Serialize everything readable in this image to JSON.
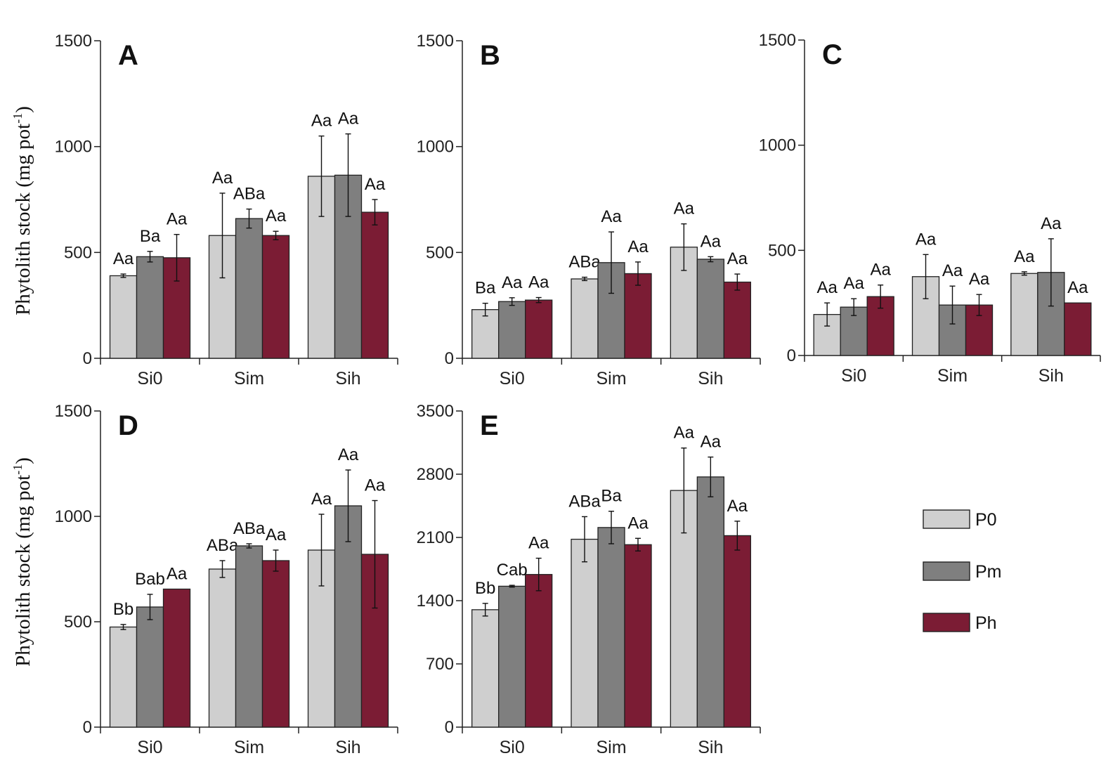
{
  "y_axis_label": {
    "main": "Phytolith stock (mg pot",
    "sup": "-1",
    "close": ")"
  },
  "legend": [
    {
      "label": "P0",
      "color": "#cfcfcf"
    },
    {
      "label": "Pm",
      "color": "#7f7f7f"
    },
    {
      "label": "Ph",
      "color": "#7b1c34"
    }
  ],
  "chart_data": [
    {
      "type": "bar",
      "panel": "A",
      "categories": [
        "Si0",
        "Sim",
        "Sih"
      ],
      "ylim": [
        0,
        1500
      ],
      "yticks": [
        0,
        500,
        1000,
        1500
      ],
      "series": [
        {
          "name": "P0",
          "values": [
            390,
            580,
            860
          ],
          "errors": [
            8,
            200,
            190
          ],
          "labels": [
            "Aa",
            "Aa",
            "Aa"
          ]
        },
        {
          "name": "Pm",
          "values": [
            480,
            660,
            865
          ],
          "errors": [
            25,
            45,
            195
          ],
          "labels": [
            "Ba",
            "ABa",
            "Aa"
          ]
        },
        {
          "name": "Ph",
          "values": [
            475,
            580,
            690
          ],
          "errors": [
            110,
            20,
            60
          ],
          "labels": [
            "Aa",
            "Aa",
            "Aa"
          ]
        }
      ]
    },
    {
      "type": "bar",
      "panel": "B",
      "categories": [
        "Si0",
        "Sim",
        "Sih"
      ],
      "ylim": [
        0,
        1500
      ],
      "yticks": [
        0,
        500,
        1000,
        1500
      ],
      "series": [
        {
          "name": "P0",
          "values": [
            230,
            375,
            525
          ],
          "errors": [
            30,
            8,
            110
          ],
          "labels": [
            "Ba",
            "ABa",
            "Aa"
          ]
        },
        {
          "name": "Pm",
          "values": [
            268,
            452,
            468
          ],
          "errors": [
            18,
            145,
            12
          ],
          "labels": [
            "Aa",
            "Aa",
            "Aa"
          ]
        },
        {
          "name": "Ph",
          "values": [
            275,
            400,
            360
          ],
          "errors": [
            12,
            55,
            38
          ],
          "labels": [
            "Aa",
            "Aa",
            "Aa"
          ]
        }
      ]
    },
    {
      "type": "bar",
      "panel": "C",
      "categories": [
        "Si0",
        "Sim",
        "Sih"
      ],
      "ylim": [
        0,
        1500
      ],
      "yticks": [
        0,
        500,
        1000,
        1500
      ],
      "series": [
        {
          "name": "P0",
          "values": [
            195,
            375,
            390
          ],
          "errors": [
            55,
            105,
            8
          ],
          "labels": [
            "Aa",
            "Aa",
            "Aa"
          ]
        },
        {
          "name": "Pm",
          "values": [
            230,
            240,
            395
          ],
          "errors": [
            40,
            90,
            160
          ],
          "labels": [
            "Aa",
            "Aa",
            "Aa"
          ]
        },
        {
          "name": "Ph",
          "values": [
            280,
            240,
            250
          ],
          "errors": [
            55,
            50,
            0
          ],
          "labels": [
            "Aa",
            "Aa",
            "Aa"
          ]
        }
      ]
    },
    {
      "type": "bar",
      "panel": "D",
      "categories": [
        "Si0",
        "Sim",
        "Sih"
      ],
      "ylim": [
        0,
        1500
      ],
      "yticks": [
        0,
        500,
        1000,
        1500
      ],
      "series": [
        {
          "name": "P0",
          "values": [
            475,
            750,
            840
          ],
          "errors": [
            12,
            40,
            170
          ],
          "labels": [
            "Bb",
            "ABa",
            "Aa"
          ]
        },
        {
          "name": "Pm",
          "values": [
            570,
            860,
            1050
          ],
          "errors": [
            60,
            10,
            170
          ],
          "labels": [
            "Bab",
            "ABa",
            "Aa"
          ]
        },
        {
          "name": "Ph",
          "values": [
            655,
            790,
            820
          ],
          "errors": [
            0,
            50,
            255
          ],
          "labels": [
            "Aa",
            "Aa",
            "Aa"
          ]
        }
      ]
    },
    {
      "type": "bar",
      "panel": "E",
      "categories": [
        "Si0",
        "Sim",
        "Sih"
      ],
      "ylim": [
        0,
        3500
      ],
      "yticks": [
        0,
        700,
        1400,
        2100,
        2800,
        3500
      ],
      "series": [
        {
          "name": "P0",
          "values": [
            1300,
            2080,
            2620
          ],
          "errors": [
            70,
            250,
            470
          ],
          "labels": [
            "Bb",
            "ABa",
            "Aa"
          ]
        },
        {
          "name": "Pm",
          "values": [
            1560,
            2210,
            2770
          ],
          "errors": [
            10,
            180,
            220
          ],
          "labels": [
            "Cab",
            "Ba",
            "Aa"
          ]
        },
        {
          "name": "Ph",
          "values": [
            1690,
            2020,
            2120
          ],
          "errors": [
            180,
            70,
            160
          ],
          "labels": [
            "Aa",
            "Aa",
            "Aa"
          ]
        }
      ]
    }
  ]
}
